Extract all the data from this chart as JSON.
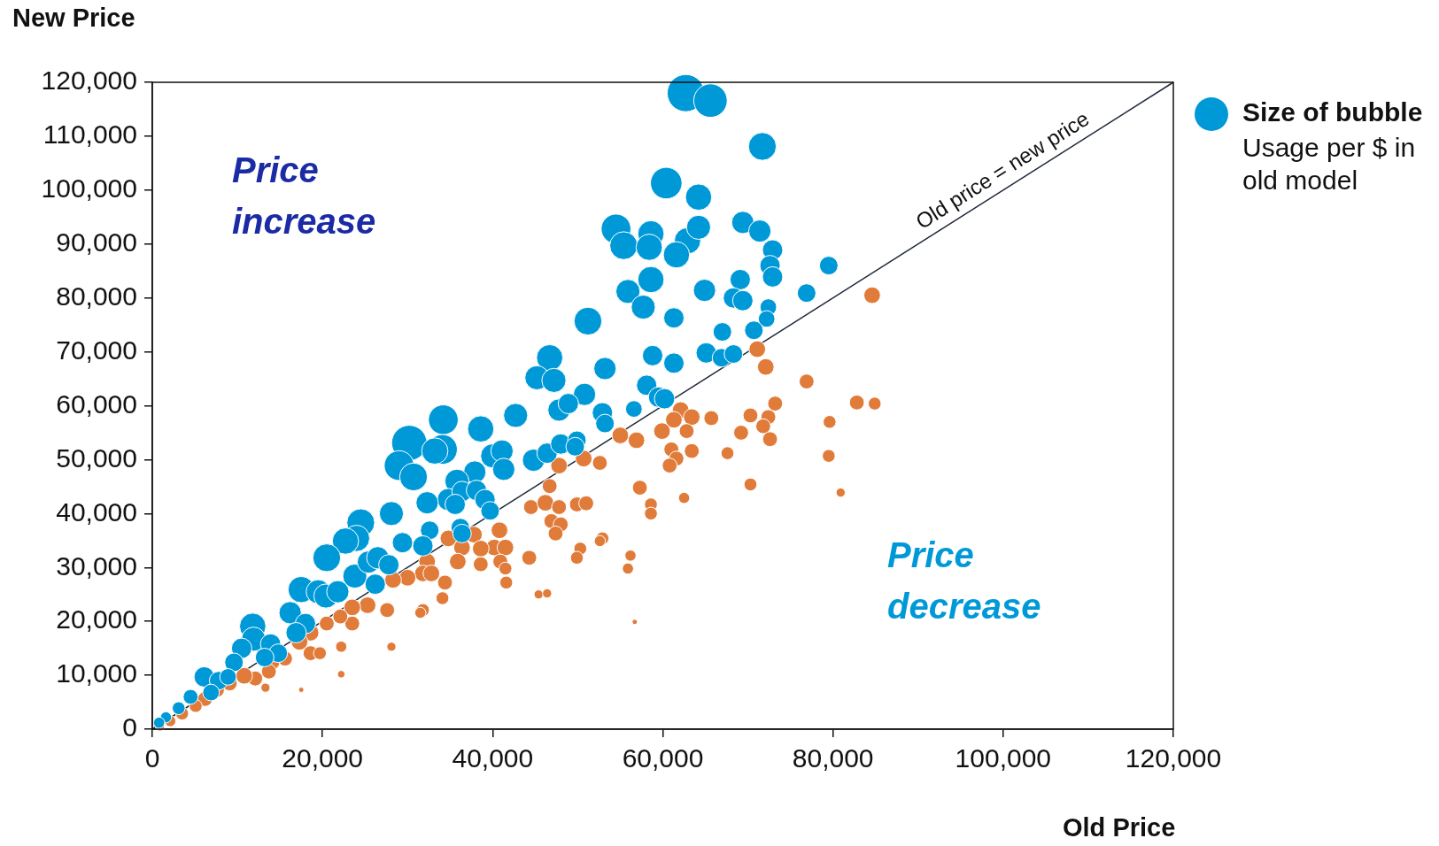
{
  "chart_data": {
    "type": "bubble",
    "xlabel": "Old Price",
    "ylabel": "New Price",
    "legend_title": "Size of bubble",
    "annotations": [
      "Price increase",
      "Price decrease",
      {
        "text": "Old price = new price",
        "x": 101000,
        "y": 101000
      },
      "Usage per $ in old model"
    ],
    "xlim": [
      0,
      120000
    ],
    "ylim": [
      0,
      120000
    ],
    "xticks": [
      0,
      {
        "value": 20000,
        "label": "20,000"
      },
      {
        "value": 40000,
        "label": "40,000"
      },
      {
        "value": 60000,
        "label": "60,000"
      },
      {
        "value": 80000,
        "label": "80,000"
      },
      {
        "value": 100000,
        "label": "100,000"
      },
      {
        "value": 120000,
        "label": "120,000"
      }
    ],
    "yticks": [
      0,
      {
        "value": 10000,
        "label": "10,000"
      },
      {
        "value": 20000,
        "label": "20,000"
      },
      {
        "value": 30000,
        "label": "30,000"
      },
      {
        "value": 40000,
        "label": "40,000"
      },
      {
        "value": 50000,
        "label": "50,000"
      },
      {
        "value": 60000,
        "label": "60,000"
      },
      {
        "value": 70000,
        "label": "70,000"
      },
      {
        "value": 80000,
        "label": "80,000"
      },
      {
        "value": 90000,
        "label": "90,000"
      },
      {
        "value": 100000,
        "label": "100,000"
      },
      {
        "value": 110000,
        "label": "110,000"
      },
      {
        "value": 120000,
        "label": "120,000"
      }
    ],
    "grid": false,
    "series": [
      {
        "color": "#0099d8",
        "x": [
          62700,
          65600,
          71700,
          60400,
          64200,
          54500,
          58600,
          55400,
          58400,
          62900,
          64200,
          61600,
          69400,
          71400,
          72900,
          72600,
          72900,
          79500,
          58600,
          55900,
          64900,
          69100,
          68300,
          69400,
          76900,
          72400,
          72200,
          70700,
          57700,
          61300,
          51200,
          67000,
          58800,
          65100,
          66900,
          68300,
          61300,
          46700,
          53200,
          45200,
          47200,
          58100,
          59500,
          60200,
          47800,
          50800,
          48900,
          52900,
          56600,
          53200,
          42700,
          34200,
          38600,
          30200,
          34100,
          33200,
          29000,
          30700,
          40000,
          41100,
          41300,
          37900,
          44800,
          46400,
          48000,
          49900,
          49700,
          35800,
          34800,
          32300,
          36400,
          35600,
          38100,
          39100,
          39700,
          28100,
          29400,
          32600,
          31800,
          36200,
          36400,
          24500,
          24000,
          22700,
          20500,
          23800,
          25400,
          26500,
          27800,
          26200,
          17500,
          19500,
          20400,
          21800,
          16200,
          18000,
          16900,
          11800,
          11900,
          13900,
          14800,
          10500,
          9600,
          13200,
          6100,
          7800,
          8900,
          6900,
          4500,
          3100,
          1600,
          800
        ],
        "values": [
          118000,
          116600,
          108100,
          101300,
          98700,
          92800,
          91900,
          89700,
          89400,
          90600,
          93100,
          88000,
          94000,
          92400,
          88900,
          86000,
          83900,
          86000,
          83400,
          81200,
          81400,
          83400,
          80000,
          79500,
          80900,
          78300,
          76100,
          74000,
          78300,
          76300,
          75700,
          73700,
          69300,
          69800,
          68900,
          69600,
          67900,
          68900,
          66900,
          65200,
          64700,
          63800,
          61600,
          61300,
          59200,
          62100,
          60400,
          58700,
          59400,
          56700,
          58200,
          57400,
          55700,
          53100,
          51900,
          51600,
          48900,
          46800,
          50700,
          51600,
          48200,
          47700,
          49900,
          51200,
          52900,
          53600,
          52400,
          46000,
          42600,
          42000,
          44100,
          41700,
          44300,
          42600,
          40500,
          40000,
          34600,
          36900,
          34000,
          37400,
          36300,
          38300,
          35400,
          34900,
          31800,
          28400,
          31000,
          31800,
          30500,
          26900,
          25900,
          25500,
          24700,
          25500,
          21600,
          19600,
          17900,
          19100,
          16700,
          15800,
          14100,
          15000,
          12400,
          13300,
          9700,
          9000,
          9700,
          6800,
          6000,
          3900,
          2200,
          1200
        ],
        "sizes": [
          1,
          0.81,
          0.56,
          0.72,
          0.5,
          0.64,
          0.5,
          0.56,
          0.5,
          0.5,
          0.42,
          0.5,
          0.36,
          0.36,
          0.3,
          0.3,
          0.3,
          0.25,
          0.5,
          0.42,
          0.36,
          0.3,
          0.3,
          0.3,
          0.25,
          0.2,
          0.2,
          0.25,
          0.42,
          0.3,
          0.56,
          0.25,
          0.3,
          0.3,
          0.25,
          0.25,
          0.3,
          0.5,
          0.36,
          0.42,
          0.42,
          0.3,
          0.3,
          0.3,
          0.36,
          0.36,
          0.3,
          0.3,
          0.2,
          0.25,
          0.42,
          0.64,
          0.5,
          0.9,
          0.64,
          0.5,
          0.64,
          0.56,
          0.42,
          0.36,
          0.36,
          0.36,
          0.36,
          0.3,
          0.3,
          0.25,
          0.25,
          0.42,
          0.36,
          0.36,
          0.3,
          0.3,
          0.3,
          0.3,
          0.25,
          0.42,
          0.3,
          0.25,
          0.3,
          0.25,
          0.25,
          0.56,
          0.5,
          0.5,
          0.56,
          0.42,
          0.36,
          0.36,
          0.3,
          0.3,
          0.5,
          0.42,
          0.42,
          0.36,
          0.36,
          0.3,
          0.3,
          0.5,
          0.42,
          0.3,
          0.25,
          0.3,
          0.25,
          0.25,
          0.3,
          0.25,
          0.2,
          0.2,
          0.16,
          0.12,
          0.09,
          0.09
        ]
      },
      {
        "color": "#e07b39",
        "x": [
          84600,
          71100,
          72100,
          76900,
          62100,
          61300,
          63400,
          65700,
          82800,
          84900,
          73200,
          72400,
          70300,
          71800,
          72600,
          69200,
          79600,
          59900,
          62800,
          55000,
          56900,
          61000,
          61600,
          63400,
          60800,
          67600,
          79500,
          50700,
          52600,
          47800,
          46700,
          57300,
          70300,
          58600,
          58600,
          62500,
          80900,
          44500,
          46200,
          47800,
          49900,
          51000,
          46900,
          48000,
          40800,
          34800,
          37800,
          36400,
          40200,
          41500,
          38600,
          40900,
          41500,
          38600,
          35900,
          44300,
          47400,
          50300,
          49900,
          52900,
          52600,
          41600,
          32300,
          31800,
          30000,
          32800,
          34400,
          34100,
          31800,
          31500,
          28300,
          27600,
          25300,
          23500,
          23500,
          22100,
          20500,
          18600,
          17300,
          18600,
          19700,
          15600,
          14100,
          13700,
          13300,
          12100,
          10800,
          9100,
          7600,
          6200,
          5100,
          3500,
          2100,
          900,
          22200,
          28100,
          22200,
          17500,
          45400,
          46400,
          55900,
          56200,
          56700
        ],
        "values": [
          80500,
          70500,
          67200,
          64500,
          59200,
          57400,
          57900,
          57700,
          60600,
          60400,
          60400,
          57900,
          58200,
          56200,
          53800,
          55000,
          57000,
          55300,
          55300,
          54500,
          53600,
          51900,
          50200,
          51600,
          48900,
          51200,
          50700,
          50200,
          49400,
          48900,
          45100,
          44800,
          45400,
          41700,
          40000,
          42900,
          43900,
          41200,
          42000,
          41200,
          41700,
          41900,
          38600,
          38000,
          36900,
          35400,
          36100,
          33700,
          33700,
          33700,
          33500,
          31100,
          29800,
          30600,
          31100,
          31800,
          36300,
          33500,
          31800,
          35400,
          34900,
          27200,
          31100,
          28900,
          28100,
          28900,
          27200,
          24300,
          22100,
          21600,
          27700,
          22100,
          23000,
          22600,
          19600,
          20900,
          19600,
          17900,
          16200,
          14100,
          14100,
          13100,
          12400,
          10700,
          7700,
          9400,
          9900,
          8500,
          7300,
          5600,
          4300,
          2900,
          1500,
          500,
          15300,
          15300,
          10200,
          7300,
          25000,
          25200,
          29800,
          32200,
          19900
        ],
        "sizes": [
          0.2,
          0.2,
          0.2,
          0.16,
          0.2,
          0.2,
          0.2,
          0.16,
          0.16,
          0.12,
          0.16,
          0.16,
          0.16,
          0.16,
          0.16,
          0.16,
          0.12,
          0.2,
          0.16,
          0.2,
          0.2,
          0.16,
          0.16,
          0.16,
          0.16,
          0.12,
          0.12,
          0.2,
          0.16,
          0.2,
          0.16,
          0.16,
          0.12,
          0.12,
          0.12,
          0.09,
          0.06,
          0.16,
          0.2,
          0.16,
          0.16,
          0.16,
          0.16,
          0.16,
          0.2,
          0.2,
          0.2,
          0.2,
          0.2,
          0.2,
          0.2,
          0.16,
          0.12,
          0.16,
          0.2,
          0.16,
          0.16,
          0.12,
          0.12,
          0.12,
          0.09,
          0.12,
          0.2,
          0.2,
          0.2,
          0.2,
          0.16,
          0.12,
          0.12,
          0.09,
          0.2,
          0.16,
          0.2,
          0.2,
          0.16,
          0.16,
          0.16,
          0.2,
          0.2,
          0.16,
          0.12,
          0.16,
          0.16,
          0.16,
          0.06,
          0.16,
          0.2,
          0.16,
          0.16,
          0.16,
          0.12,
          0.12,
          0.09,
          0.06,
          0.09,
          0.06,
          0.04,
          0.02,
          0.06,
          0.06,
          0.09,
          0.09,
          0.02
        ]
      },
      {
        "type": "line",
        "color": "#1f2a3a",
        "marker": "none",
        "x": [
          0,
          120000
        ],
        "values": [
          0,
          120000
        ]
      }
    ]
  }
}
